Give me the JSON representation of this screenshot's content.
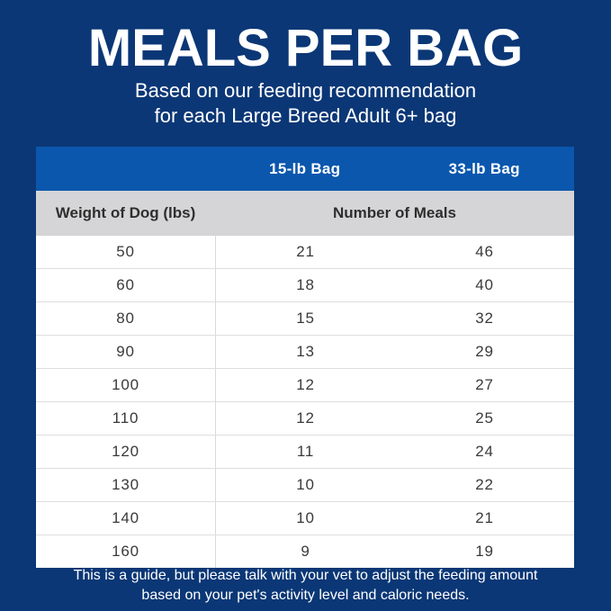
{
  "header": {
    "title": "MEALS PER BAG",
    "subtitle_line1": "Based on our feeding recommendation",
    "subtitle_line2": "for each Large Breed Adult 6+ bag"
  },
  "table": {
    "bag_columns": [
      "15-lb Bag",
      "33-lb Bag"
    ],
    "weight_header": "Weight of Dog (lbs)",
    "meals_header": "Number of Meals",
    "rows": [
      {
        "weight": "50",
        "bag15": "21",
        "bag33": "46"
      },
      {
        "weight": "60",
        "bag15": "18",
        "bag33": "40"
      },
      {
        "weight": "80",
        "bag15": "15",
        "bag33": "32"
      },
      {
        "weight": "90",
        "bag15": "13",
        "bag33": "29"
      },
      {
        "weight": "100",
        "bag15": "12",
        "bag33": "27"
      },
      {
        "weight": "110",
        "bag15": "12",
        "bag33": "25"
      },
      {
        "weight": "120",
        "bag15": "11",
        "bag33": "24"
      },
      {
        "weight": "130",
        "bag15": "10",
        "bag33": "22"
      },
      {
        "weight": "140",
        "bag15": "10",
        "bag33": "21"
      },
      {
        "weight": "160",
        "bag15": "9",
        "bag33": "19"
      }
    ]
  },
  "footer": {
    "line1": "This is a guide, but please talk with your vet to adjust the feeding amount",
    "line2": "based on your pet's activity level and caloric needs."
  },
  "colors": {
    "background": "#0b3776",
    "header_band": "#0a57ad",
    "subheader_bg": "#d5d5d7",
    "row_bg": "#ffffff",
    "row_divider": "#dedede",
    "text_dark": "#3a3a3a",
    "text_light": "#ffffff"
  },
  "chart_data": {
    "type": "table",
    "title": "MEALS PER BAG",
    "subtitle": "Based on our feeding recommendation for each Large Breed Adult 6+ bag",
    "columns": [
      "Weight of Dog (lbs)",
      "15-lb Bag",
      "33-lb Bag"
    ],
    "value_label": "Number of Meals",
    "rows": [
      [
        50,
        21,
        46
      ],
      [
        60,
        18,
        40
      ],
      [
        80,
        15,
        32
      ],
      [
        90,
        13,
        29
      ],
      [
        100,
        12,
        27
      ],
      [
        110,
        12,
        25
      ],
      [
        120,
        11,
        24
      ],
      [
        130,
        10,
        22
      ],
      [
        140,
        10,
        21
      ],
      [
        160,
        9,
        19
      ]
    ],
    "note": "This is a guide, but please talk with your vet to adjust the feeding amount based on your pet's activity level and caloric needs."
  }
}
